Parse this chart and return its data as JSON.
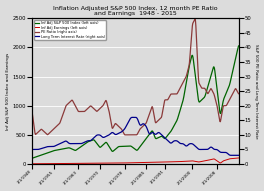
{
  "title": "Inflation Adjusted S&P 500 Index, 12 month PE Ratio\nand Earnings  1948 - 2015",
  "ylabel_left": "Inf Adj S&P 500 Index and Earnings",
  "ylabel_right": "S&P 500 PE Ratio and Long Term Interest Rate",
  "ylim_left": [
    0,
    2500
  ],
  "ylim_right": [
    0,
    50
  ],
  "yticks_left": [
    0,
    500,
    1000,
    1500,
    2000,
    2500
  ],
  "yticks_right": [
    0,
    5,
    10,
    15,
    20,
    25,
    30,
    35,
    40,
    45,
    50
  ],
  "xtick_years": [
    1948,
    1955,
    1963,
    1970,
    1978,
    1985,
    1991,
    2000,
    2008
  ],
  "xtick_labels": [
    "1/1/1948",
    "1/1/1955",
    "1/1/1963",
    "1/1/1970",
    "1/1/1978",
    "2/1/1985",
    "1/1/1991",
    "2/1/2000",
    "1/1/2008"
  ],
  "legend": [
    {
      "label": "Inf Adj S&P 500 Index (left axis)",
      "color": "#006400"
    },
    {
      "label": "Inf Adj Earnings (left axis)",
      "color": "#cc0000"
    },
    {
      "label": "PE Ratio (right axis)",
      "color": "#8b3a3a"
    },
    {
      "label": "Long Term Interest Rate (right axis)",
      "color": "#00008b"
    }
  ],
  "bg_color": "#dcdcdc",
  "grid_color": "#ffffff",
  "sp500_keypoints": [
    [
      1948,
      100
    ],
    [
      1955,
      230
    ],
    [
      1960,
      280
    ],
    [
      1962,
      230
    ],
    [
      1966,
      380
    ],
    [
      1968,
      420
    ],
    [
      1970,
      280
    ],
    [
      1972,
      380
    ],
    [
      1974,
      210
    ],
    [
      1976,
      300
    ],
    [
      1980,
      310
    ],
    [
      1982,
      230
    ],
    [
      1987,
      580
    ],
    [
      1988,
      430
    ],
    [
      1990,
      480
    ],
    [
      1991,
      430
    ],
    [
      1993,
      560
    ],
    [
      1995,
      750
    ],
    [
      1997,
      1100
    ],
    [
      1999,
      1700
    ],
    [
      2000,
      1900
    ],
    [
      2002,
      1050
    ],
    [
      2004,
      1150
    ],
    [
      2007,
      1700
    ],
    [
      2009,
      820
    ],
    [
      2010,
      1100
    ],
    [
      2012,
      1350
    ],
    [
      2015,
      2050
    ]
  ],
  "earnings_keypoints": [
    [
      1948,
      5
    ],
    [
      1955,
      8
    ],
    [
      1960,
      10
    ],
    [
      1965,
      12
    ],
    [
      1970,
      14
    ],
    [
      1975,
      15
    ],
    [
      1980,
      22
    ],
    [
      1985,
      30
    ],
    [
      1990,
      35
    ],
    [
      1995,
      40
    ],
    [
      2000,
      55
    ],
    [
      2002,
      35
    ],
    [
      2005,
      65
    ],
    [
      2007,
      90
    ],
    [
      2009,
      15
    ],
    [
      2010,
      55
    ],
    [
      2012,
      90
    ],
    [
      2015,
      105
    ]
  ],
  "pe_keypoints": [
    [
      1948,
      18
    ],
    [
      1949,
      10
    ],
    [
      1951,
      12
    ],
    [
      1953,
      10
    ],
    [
      1955,
      12
    ],
    [
      1957,
      14
    ],
    [
      1959,
      20
    ],
    [
      1961,
      22
    ],
    [
      1963,
      18
    ],
    [
      1965,
      18
    ],
    [
      1967,
      20
    ],
    [
      1969,
      18
    ],
    [
      1971,
      20
    ],
    [
      1972,
      22
    ],
    [
      1973,
      18
    ],
    [
      1974,
      12
    ],
    [
      1975,
      14
    ],
    [
      1977,
      12
    ],
    [
      1978,
      10
    ],
    [
      1979,
      10
    ],
    [
      1981,
      10
    ],
    [
      1982,
      10
    ],
    [
      1983,
      12
    ],
    [
      1985,
      14
    ],
    [
      1987,
      20
    ],
    [
      1988,
      14
    ],
    [
      1990,
      16
    ],
    [
      1991,
      22
    ],
    [
      1992,
      22
    ],
    [
      1993,
      24
    ],
    [
      1995,
      24
    ],
    [
      1996,
      26
    ],
    [
      1997,
      28
    ],
    [
      1998,
      30
    ],
    [
      1999,
      34
    ],
    [
      2000,
      48
    ],
    [
      2001,
      50
    ],
    [
      2002,
      28
    ],
    [
      2003,
      26
    ],
    [
      2004,
      26
    ],
    [
      2005,
      24
    ],
    [
      2006,
      26
    ],
    [
      2007,
      24
    ],
    [
      2008,
      20
    ],
    [
      2009,
      14
    ],
    [
      2010,
      20
    ],
    [
      2011,
      20
    ],
    [
      2012,
      22
    ],
    [
      2013,
      24
    ],
    [
      2014,
      26
    ],
    [
      2015,
      24
    ]
  ],
  "rate_keypoints": [
    [
      1948,
      5
    ],
    [
      1950,
      5
    ],
    [
      1953,
      6
    ],
    [
      1955,
      6
    ],
    [
      1957,
      7
    ],
    [
      1959,
      8
    ],
    [
      1960,
      7
    ],
    [
      1962,
      7
    ],
    [
      1964,
      7
    ],
    [
      1966,
      8
    ],
    [
      1967,
      8
    ],
    [
      1969,
      10
    ],
    [
      1970,
      10
    ],
    [
      1971,
      9
    ],
    [
      1973,
      10
    ],
    [
      1974,
      11
    ],
    [
      1975,
      10
    ],
    [
      1977,
      11
    ],
    [
      1978,
      12
    ],
    [
      1979,
      14
    ],
    [
      1980,
      16
    ],
    [
      1981,
      16
    ],
    [
      1982,
      16
    ],
    [
      1983,
      13
    ],
    [
      1984,
      14
    ],
    [
      1985,
      13
    ],
    [
      1986,
      10
    ],
    [
      1987,
      11
    ],
    [
      1988,
      10
    ],
    [
      1989,
      11
    ],
    [
      1990,
      10
    ],
    [
      1991,
      9
    ],
    [
      1992,
      8
    ],
    [
      1993,
      7
    ],
    [
      1994,
      8
    ],
    [
      1995,
      8
    ],
    [
      1996,
      7
    ],
    [
      1997,
      7
    ],
    [
      1998,
      6
    ],
    [
      1999,
      7
    ],
    [
      2000,
      7
    ],
    [
      2001,
      6
    ],
    [
      2002,
      5
    ],
    [
      2003,
      5
    ],
    [
      2004,
      5
    ],
    [
      2005,
      5
    ],
    [
      2006,
      6
    ],
    [
      2007,
      5
    ],
    [
      2008,
      5
    ],
    [
      2009,
      4
    ],
    [
      2010,
      4
    ],
    [
      2011,
      4
    ],
    [
      2012,
      3
    ],
    [
      2013,
      3
    ],
    [
      2014,
      3
    ],
    [
      2015,
      3
    ]
  ]
}
